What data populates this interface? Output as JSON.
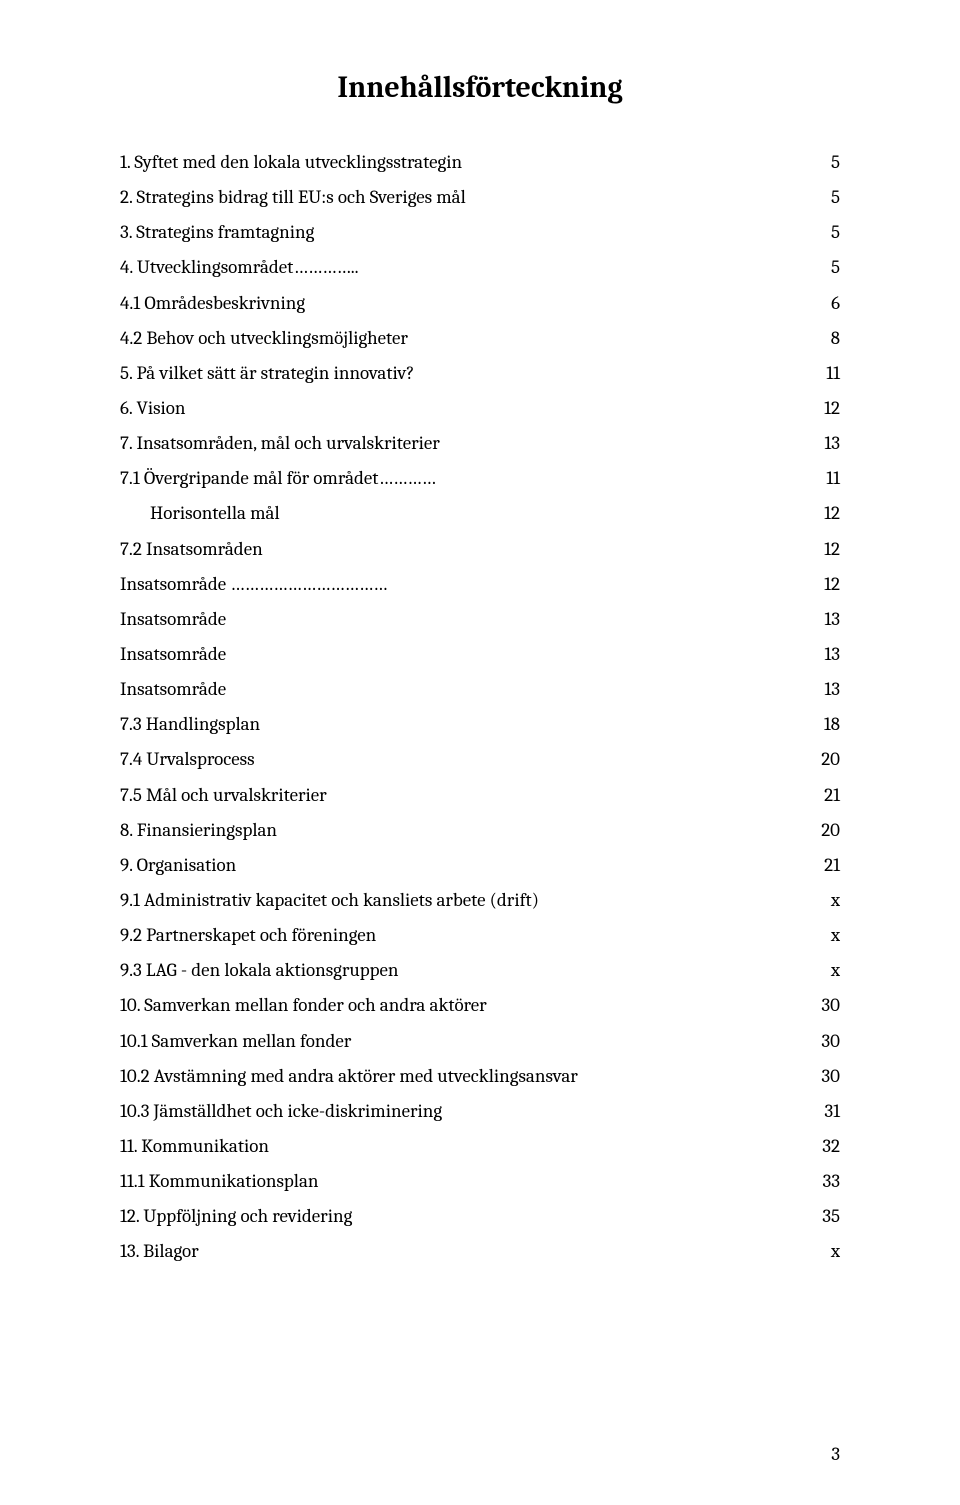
{
  "title": "Innehållsförteckning",
  "toc": [
    {
      "label": "1. Syftet med den lokala utvecklingsstrategin",
      "page": "5",
      "indent": false
    },
    {
      "label": "2. Strategins bidrag till EU:s och Sveriges mål",
      "page": "5",
      "indent": false
    },
    {
      "label": "3. Strategins framtagning",
      "page": "5",
      "indent": false
    },
    {
      "label": "4. Utvecklingsområdet…………..",
      "page": "5",
      "indent": false
    },
    {
      "label": "4.1 Områdesbeskrivning",
      "page": "6",
      "indent": false
    },
    {
      "label": "4.2 Behov och utvecklingsmöjligheter",
      "page": "8",
      "indent": false
    },
    {
      "label": "5. På vilket sätt är strategin innovativ?",
      "page": "11",
      "indent": false
    },
    {
      "label": "6. Vision",
      "page": "12",
      "indent": false
    },
    {
      "label": "7. Insatsområden, mål och urvalskriterier",
      "page": "13",
      "indent": false
    },
    {
      "label": "7.1 Övergripande mål för området…………",
      "page": "11",
      "indent": false
    },
    {
      "label": "Horisontella mål",
      "page": "12",
      "indent": true
    },
    {
      "label": "7.2 Insatsområden",
      "page": "12",
      "indent": false
    },
    {
      "label": "Insatsområde ……………………………",
      "page": "12",
      "indent": false
    },
    {
      "label": "Insatsområde",
      "page": "13",
      "indent": false
    },
    {
      "label": "Insatsområde",
      "page": "13",
      "indent": false
    },
    {
      "label": "Insatsområde",
      "page": "13",
      "indent": false
    },
    {
      "label": "7.3 Handlingsplan",
      "page": "18",
      "indent": false
    },
    {
      "label": "7.4 Urvalsprocess",
      "page": "20",
      "indent": false
    },
    {
      "label": "7.5 Mål och urvalskriterier",
      "page": "21",
      "indent": false
    },
    {
      "label": "8. Finansieringsplan",
      "page": "20",
      "indent": false
    },
    {
      "label": "9. Organisation",
      "page": "21",
      "indent": false
    },
    {
      "label": "9.1 Administrativ kapacitet och kansliets arbete (drift)",
      "page": "x",
      "indent": false
    },
    {
      "label": "9.2 Partnerskapet och föreningen",
      "page": "x",
      "indent": false
    },
    {
      "label": "9.3 LAG - den lokala aktionsgruppen",
      "page": "x",
      "indent": false
    },
    {
      "label": "10. Samverkan mellan fonder och andra aktörer",
      "page": "30",
      "indent": false
    },
    {
      "label": "10.1 Samverkan mellan fonder",
      "page": "30",
      "indent": false
    },
    {
      "label": "10.2 Avstämning med andra aktörer med utvecklingsansvar",
      "page": "30",
      "indent": false
    },
    {
      "label": "10.3 Jämställdhet och icke-diskriminering",
      "page": "31",
      "indent": false
    },
    {
      "label": "11. Kommunikation",
      "page": "32",
      "indent": false
    },
    {
      "label": "11.1 Kommunikationsplan",
      "page": "33",
      "indent": false
    },
    {
      "label": "12. Uppföljning och revidering",
      "page": "35",
      "indent": false
    },
    {
      "label": "13. Bilagor",
      "page": "x",
      "indent": false
    }
  ],
  "page_number": "3",
  "colors": {
    "text": "#000000",
    "background": "#ffffff"
  },
  "typography": {
    "title_fontsize": 30,
    "body_fontsize": 19,
    "font_family": "Cambria / Georgia / serif"
  }
}
